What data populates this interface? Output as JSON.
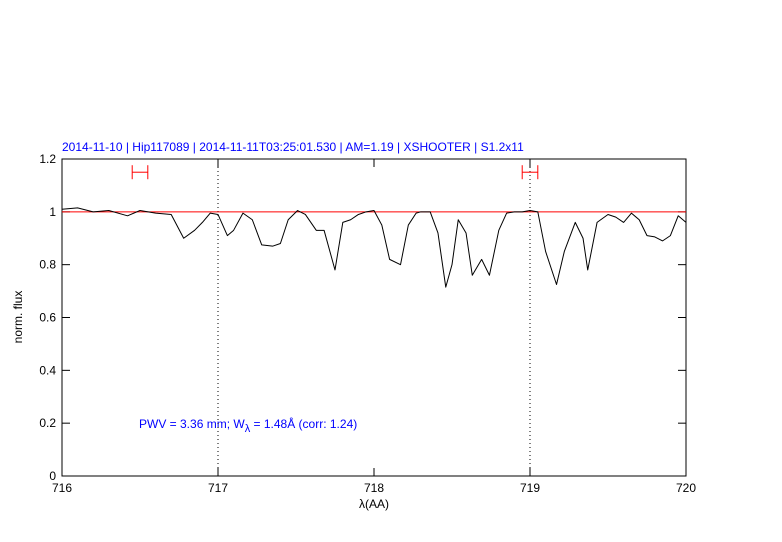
{
  "chart_data": {
    "type": "line",
    "title": "2014-11-10 | Hip117089 | 2014-11-11T03:25:01.530 | AM=1.19 | XSHOOTER | S1.2x11",
    "title_color": "#0000ff",
    "xlabel": "λ(AA)",
    "ylabel": "norm. flux",
    "annotation": [
      "PWV = 3.36 mm; W",
      "λ",
      " = 1.48Å (corr: 1.24)"
    ],
    "annotation_color": "#0000ff",
    "xlim": [
      716,
      720
    ],
    "xticks": [
      716,
      717,
      718,
      719,
      720
    ],
    "ylim": [
      0,
      1.2
    ],
    "yticks": [
      0,
      0.2,
      0.4,
      0.6,
      0.8,
      1,
      1.2
    ],
    "vlines": [
      717,
      719
    ],
    "hline": {
      "y": 1,
      "color": "#ff0000"
    },
    "intervals": [
      {
        "xmin": 716.45,
        "xmax": 716.55,
        "y": 1.15
      },
      {
        "xmin": 718.95,
        "xmax": 719.05,
        "y": 1.15
      }
    ],
    "interval_color": "#ff0000",
    "series": [
      {
        "color": "#000000",
        "x": [
          716.0,
          716.1,
          716.2,
          716.3,
          716.42,
          716.5,
          716.6,
          716.7,
          716.78,
          716.85,
          716.9,
          716.95,
          717.0,
          717.06,
          717.1,
          717.16,
          717.22,
          717.28,
          717.35,
          717.4,
          717.45,
          717.51,
          717.56,
          717.63,
          717.68,
          717.75,
          717.8,
          717.85,
          717.9,
          717.95,
          718.0,
          718.05,
          718.1,
          718.17,
          718.22,
          718.27,
          718.3,
          718.36,
          718.41,
          718.46,
          718.5,
          718.54,
          718.59,
          718.63,
          718.69,
          718.74,
          718.8,
          718.85,
          718.9,
          718.95,
          719.0,
          719.05,
          719.1,
          719.17,
          719.22,
          719.29,
          719.34,
          719.37,
          719.43,
          719.5,
          719.55,
          719.6,
          719.65,
          719.7,
          719.75,
          719.8,
          719.85,
          719.9,
          719.95,
          720.0
        ],
        "values": [
          1.01,
          1.015,
          1.0,
          1.005,
          0.985,
          1.005,
          0.995,
          0.99,
          0.9,
          0.93,
          0.96,
          0.995,
          0.99,
          0.91,
          0.93,
          0.995,
          0.97,
          0.875,
          0.87,
          0.88,
          0.97,
          1.005,
          0.99,
          0.93,
          0.93,
          0.78,
          0.96,
          0.97,
          0.99,
          1.0,
          1.005,
          0.95,
          0.82,
          0.8,
          0.95,
          0.995,
          1.0,
          1.0,
          0.92,
          0.715,
          0.8,
          0.97,
          0.92,
          0.76,
          0.82,
          0.76,
          0.93,
          0.995,
          1.0,
          1.0,
          1.005,
          1.0,
          0.85,
          0.725,
          0.85,
          0.96,
          0.9,
          0.78,
          0.96,
          0.99,
          0.98,
          0.96,
          0.995,
          0.97,
          0.91,
          0.905,
          0.89,
          0.91,
          0.985,
          0.96
        ]
      }
    ]
  }
}
